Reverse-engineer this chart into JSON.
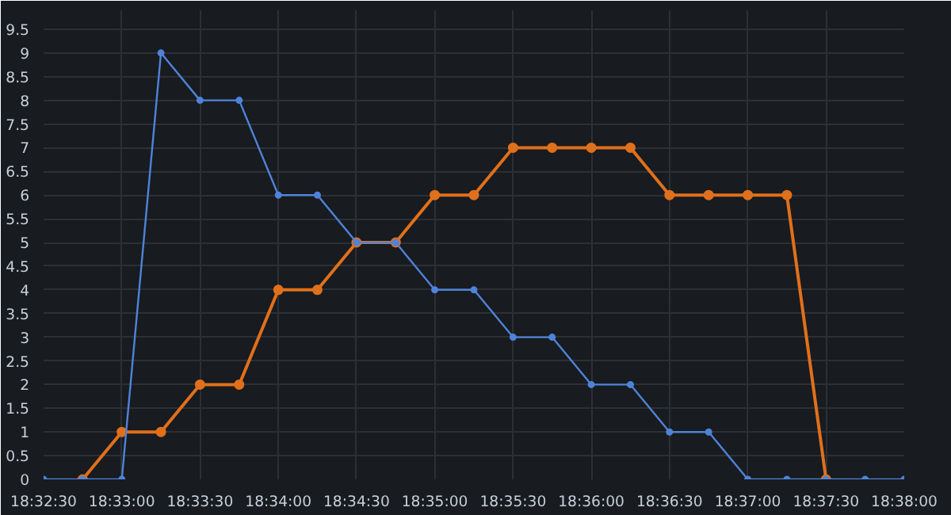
{
  "chart_data": {
    "type": "line",
    "x": [
      18.54167,
      18.54583,
      18.55,
      18.55417,
      18.55833,
      18.5625,
      18.56667,
      18.57083,
      18.575,
      18.57917,
      18.58333,
      18.5875,
      18.59167,
      18.59583,
      18.6,
      18.60417,
      18.60833,
      18.6125,
      18.61667,
      18.62083,
      18.625,
      18.62917,
      18.63333
    ],
    "series": [
      {
        "color": "#4f83d9",
        "values": [
          0,
          0,
          0,
          9,
          8,
          8,
          6,
          6,
          5,
          5,
          4,
          4,
          3,
          3,
          2,
          2,
          1,
          1,
          0,
          0,
          0,
          0,
          0
        ]
      },
      {
        "color": "#e0701c",
        "values": [
          null,
          0,
          1,
          1,
          2,
          2,
          4,
          4,
          5,
          5,
          6,
          6,
          7,
          7,
          7,
          7,
          6,
          6,
          6,
          6,
          0,
          null,
          null
        ]
      }
    ],
    "xlim": [
      18.54167,
      18.63333
    ],
    "xticks": [
      {
        "value": 18.54167,
        "label": "18:32:30"
      },
      {
        "value": 18.55,
        "label": "18:33:00"
      },
      {
        "value": 18.55833,
        "label": "18:33:30"
      },
      {
        "value": 18.56667,
        "label": "18:34:00"
      },
      {
        "value": 18.575,
        "label": "18:34:30"
      },
      {
        "value": 18.58333,
        "label": "18:35:00"
      },
      {
        "value": 18.59167,
        "label": "18:35:30"
      },
      {
        "value": 18.6,
        "label": "18:36:00"
      },
      {
        "value": 18.60833,
        "label": "18:36:30"
      },
      {
        "value": 18.61667,
        "label": "18:37:00"
      },
      {
        "value": 18.625,
        "label": "18:37:30"
      },
      {
        "value": 18.63333,
        "label": "18:38:00"
      }
    ],
    "ylim": [
      0,
      9.9
    ],
    "yticks": [
      0,
      0.5,
      1,
      1.5,
      2,
      2.5,
      3,
      3.5,
      4,
      4.5,
      5,
      5.5,
      6,
      6.5,
      7,
      7.5,
      8,
      8.5,
      9,
      9.5
    ],
    "grid": true,
    "marker": "circle",
    "line_style": "solid"
  }
}
